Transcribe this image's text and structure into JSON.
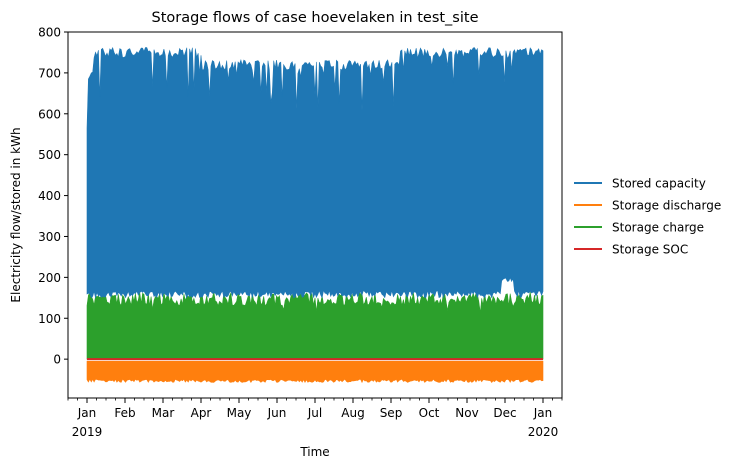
{
  "chart_data": {
    "type": "area",
    "title": "Storage flows of case hoevelaken in test_site",
    "xlabel": "Time",
    "ylabel": "Electricity flow/stored in kWh",
    "ylim": [
      -95,
      800
    ],
    "yticks": [
      0,
      100,
      200,
      300,
      400,
      500,
      600,
      700,
      800
    ],
    "xlim_months": [
      -0.5,
      12.5
    ],
    "xticks": [
      {
        "label": "Jan",
        "sub": "2019",
        "month": 0
      },
      {
        "label": "Feb",
        "sub": "",
        "month": 1
      },
      {
        "label": "Mar",
        "sub": "",
        "month": 2
      },
      {
        "label": "Apr",
        "sub": "",
        "month": 3
      },
      {
        "label": "May",
        "sub": "",
        "month": 4
      },
      {
        "label": "Jun",
        "sub": "",
        "month": 5
      },
      {
        "label": "Jul",
        "sub": "",
        "month": 6
      },
      {
        "label": "Aug",
        "sub": "",
        "month": 7
      },
      {
        "label": "Sep",
        "sub": "",
        "month": 8
      },
      {
        "label": "Oct",
        "sub": "",
        "month": 9
      },
      {
        "label": "Nov",
        "sub": "",
        "month": 10
      },
      {
        "label": "Dec",
        "sub": "",
        "month": 11
      },
      {
        "label": "Jan",
        "sub": "2020",
        "month": 12
      }
    ],
    "legend_position": "right",
    "series": [
      {
        "name": "Stored capacity",
        "color": "#1f77b4",
        "approx_min": 150,
        "approx_max": 762
      },
      {
        "name": "Storage discharge",
        "color": "#ff7f0e",
        "approx_min": -55,
        "approx_max": 0
      },
      {
        "name": "Storage charge",
        "color": "#2ca02c",
        "approx_min": 0,
        "approx_max": 165
      },
      {
        "name": "Storage SOC",
        "color": "#d62728",
        "approx_min": 0,
        "approx_max": 0
      }
    ]
  }
}
